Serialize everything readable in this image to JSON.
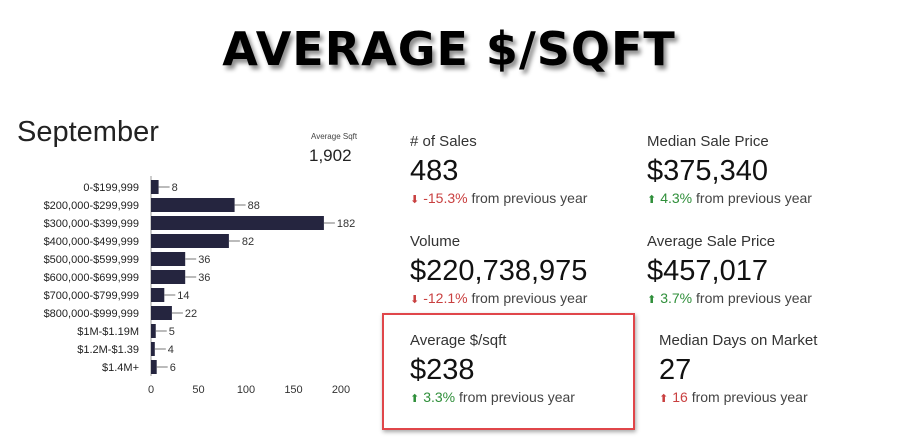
{
  "headline": "AVERAGE $/SQFT",
  "month": "September",
  "average_sqft": {
    "label": "Average Sqft",
    "value": "1,902"
  },
  "stats": [
    {
      "label": "# of Sales",
      "value": "483",
      "change": "-15.3%",
      "direction": "down",
      "suffix": "from previous year"
    },
    {
      "label": "Median Sale Price",
      "value": "$375,340",
      "change": "4.3%",
      "direction": "up",
      "suffix": "from previous year"
    },
    {
      "label": "Volume",
      "value": "$220,738,975",
      "change": "-12.1%",
      "direction": "down",
      "suffix": "from previous year"
    },
    {
      "label": "Average Sale Price",
      "value": "$457,017",
      "change": "3.7%",
      "direction": "up",
      "suffix": "from previous year"
    },
    {
      "label": "Average $/sqft",
      "value": "$238",
      "change": "3.3%",
      "direction": "up",
      "suffix": "from previous year"
    },
    {
      "label": "Median Days on Market",
      "value": "27",
      "change": "16",
      "direction": "up",
      "suffix": "from previous year"
    }
  ],
  "colors": {
    "bar": "#25253f",
    "negative": "#c94040",
    "positive": "#2f8f3a",
    "dom_arrow": "#c94040",
    "highlight_border": "#e0464a"
  },
  "chart_data": {
    "type": "bar",
    "orientation": "horizontal",
    "categories": [
      "0-$199,999",
      "$200,000-$299,999",
      "$300,000-$399,999",
      "$400,000-$499,999",
      "$500,000-$599,999",
      "$600,000-$699,999",
      "$700,000-$799,999",
      "$800,000-$999,999",
      "$1M-$1.19M",
      "$1.2M-$1.39",
      "$1.4M+"
    ],
    "values": [
      8,
      88,
      182,
      82,
      36,
      36,
      14,
      22,
      5,
      4,
      6
    ],
    "xlim": [
      0,
      200
    ],
    "xticks": [
      0,
      50,
      100,
      150,
      200
    ],
    "grid": false,
    "data_labels": true
  }
}
